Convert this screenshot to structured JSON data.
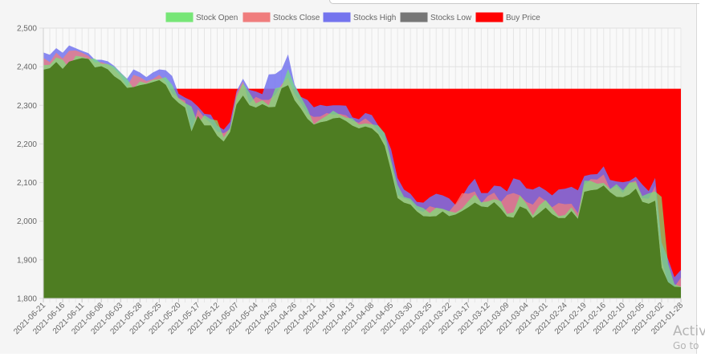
{
  "chart_data": {
    "type": "area",
    "x": [
      "2021-06-21",
      "2021-06-18",
      "2021-06-17",
      "2021-06-16",
      "2021-06-15",
      "2021-06-14",
      "2021-06-11",
      "2021-06-10",
      "2021-06-09",
      "2021-06-08",
      "2021-06-07",
      "2021-06-04",
      "2021-06-03",
      "2021-06-02",
      "2021-06-01",
      "2021-05-28",
      "2021-05-27",
      "2021-05-26",
      "2021-05-25",
      "2021-05-24",
      "2021-05-21",
      "2021-05-20",
      "2021-05-19",
      "2021-05-18",
      "2021-05-17",
      "2021-05-14",
      "2021-05-13",
      "2021-05-12",
      "2021-05-11",
      "2021-05-10",
      "2021-05-07",
      "2021-05-06",
      "2021-05-05",
      "2021-05-04",
      "2021-05-03",
      "2021-04-30",
      "2021-04-29",
      "2021-04-28",
      "2021-04-27",
      "2021-04-26",
      "2021-04-23",
      "2021-04-22",
      "2021-04-21",
      "2021-04-20",
      "2021-04-19",
      "2021-04-16",
      "2021-04-15",
      "2021-04-14",
      "2021-04-13",
      "2021-04-12",
      "2021-04-09",
      "2021-04-08",
      "2021-04-07",
      "2021-04-06",
      "2021-04-05",
      "2021-04-01",
      "2021-03-31",
      "2021-03-30",
      "2021-03-29",
      "2021-03-26",
      "2021-03-25",
      "2021-03-24",
      "2021-03-23",
      "2021-03-22",
      "2021-03-19",
      "2021-03-18",
      "2021-03-17",
      "2021-03-16",
      "2021-03-15",
      "2021-03-12",
      "2021-03-11",
      "2021-03-10",
      "2021-03-09",
      "2021-03-08",
      "2021-03-05",
      "2021-03-04",
      "2021-03-03",
      "2021-03-02",
      "2021-03-01",
      "2021-02-26",
      "2021-02-25",
      "2021-02-24",
      "2021-02-23",
      "2021-02-22",
      "2021-02-19",
      "2021-02-18",
      "2021-02-17",
      "2021-02-16",
      "2021-02-12",
      "2021-02-11",
      "2021-02-10",
      "2021-02-09",
      "2021-02-08",
      "2021-02-05",
      "2021-02-04",
      "2021-02-03",
      "2021-02-02",
      "2021-02-01",
      "2021-01-29",
      "2021-01-28"
    ],
    "x_tick_labels": [
      "2021-06-21",
      "2021-06-16",
      "2021-06-11",
      "2021-06-08",
      "2021-06-03",
      "2021-05-28",
      "2021-05-25",
      "2021-05-20",
      "2021-05-17",
      "2021-05-12",
      "2021-05-07",
      "2021-05-04",
      "2021-04-29",
      "2021-04-26",
      "2021-04-21",
      "2021-04-16",
      "2021-04-13",
      "2021-04-08",
      "2021-04-05",
      "2021-03-30",
      "2021-03-25",
      "2021-03-22",
      "2021-03-17",
      "2021-03-12",
      "2021-03-09",
      "2021-03-04",
      "2021-03-01",
      "2021-02-24",
      "2021-02-19",
      "2021-02-16",
      "2021-02-10",
      "2021-02-05",
      "2021-02-02",
      "2021-01-28"
    ],
    "y_tick_labels": [
      "1,800",
      "1,900",
      "2,000",
      "2,100",
      "2,200",
      "2,300",
      "2,400",
      "2,500"
    ],
    "ylim": [
      1800,
      2500
    ],
    "grid": true,
    "legend_position": "top",
    "series": [
      {
        "name": "Stock Open",
        "color": "#77e677",
        "values": [
          2404,
          2405,
          2424,
          2418,
          2396,
          2428,
          2426,
          2420,
          2421,
          2408,
          2407,
          2400,
          2384,
          2368,
          2344,
          2362,
          2357,
          2366,
          2368,
          2373,
          2353,
          2318,
          2306,
          2297,
          2252,
          2275,
          2264,
          2261,
          2217,
          2243,
          2321,
          2357,
          2333,
          2305,
          2313,
          2300,
          2344,
          2348,
          2394,
          2350,
          2322,
          2291,
          2251,
          2263,
          2273,
          2286,
          2276,
          2268,
          2266,
          2250,
          2253,
          2251,
          2248,
          2228,
          2158,
          2094,
          2063,
          2058,
          2040,
          2034,
          2021,
          2035,
          2032,
          2026,
          2022,
          2032,
          2052,
          2069,
          2049,
          2051,
          2057,
          2053,
          2019,
          2023,
          2067,
          2045,
          2015,
          2041,
          2055,
          2034,
          2013,
          2016,
          2036,
          2011,
          2105,
          2104,
          2097,
          2099,
          2083,
          2096,
          2080,
          2100,
          2101,
          2065,
          2072,
          2077,
          2063,
          1890,
          1837,
          1830
        ]
      },
      {
        "name": "Stocks Close",
        "color": "#f07d7d",
        "values": [
          2423,
          2412,
          2436,
          2421,
          2441,
          2442,
          2436,
          2428,
          2411,
          2412,
          2406,
          2394,
          2376,
          2349,
          2379,
          2373,
          2363,
          2368,
          2379,
          2361,
          2331,
          2319,
          2312,
          2235,
          2290,
          2268,
          2254,
          2232,
          2228,
          2238,
          2331,
          2362,
          2305,
          2322,
          2314,
          2314,
          2327,
          2354,
          2372,
          2330,
          2306,
          2278,
          2270,
          2271,
          2280,
          2276,
          2278,
          2274,
          2260,
          2255,
          2266,
          2253,
          2231,
          2206,
          2151,
          2068,
          2059,
          2053,
          2030,
          2024,
          2039,
          2034,
          2031,
          2025,
          2045,
          2073,
          2071,
          2077,
          2046,
          2065,
          2074,
          2049,
          2068,
          2073,
          2067,
          2050,
          2043,
          2064,
          2053,
          2036,
          2047,
          2044,
          2045,
          2021,
          2094,
          2109,
          2108,
          2121,
          2083,
          2090,
          2073,
          2099,
          2105,
          2060,
          2058,
          2091,
          1902,
          1840,
          1830,
          1854
        ]
      },
      {
        "name": "Stocks High",
        "color": "#7474ee",
        "values": [
          2437,
          2431,
          2448,
          2436,
          2455,
          2448,
          2441,
          2435,
          2418,
          2418,
          2414,
          2402,
          2385,
          2369,
          2393,
          2385,
          2373,
          2385,
          2393,
          2391,
          2376,
          2330,
          2320,
          2312,
          2297,
          2278,
          2276,
          2247,
          2237,
          2257,
          2337,
          2369,
          2340,
          2336,
          2329,
          2380,
          2381,
          2393,
          2432,
          2354,
          2322,
          2314,
          2295,
          2301,
          2298,
          2300,
          2300,
          2299,
          2269,
          2264,
          2280,
          2275,
          2248,
          2228,
          2186,
          2112,
          2082,
          2071,
          2050,
          2048,
          2062,
          2071,
          2067,
          2059,
          2042,
          2063,
          2091,
          2110,
          2073,
          2073,
          2092,
          2090,
          2077,
          2111,
          2106,
          2085,
          2082,
          2090,
          2080,
          2067,
          2082,
          2084,
          2089,
          2080,
          2117,
          2121,
          2122,
          2142,
          2107,
          2103,
          2101,
          2104,
          2115,
          2095,
          2078,
          2112,
          1945,
          1902,
          1855,
          1874
        ]
      },
      {
        "name": "Stocks Low",
        "color": "#777777",
        "values": [
          2392,
          2396,
          2412,
          2394,
          2413,
          2418,
          2422,
          2420,
          2398,
          2401,
          2393,
          2375,
          2364,
          2345,
          2347,
          2352,
          2355,
          2360,
          2365,
          2353,
          2322,
          2306,
          2294,
          2232,
          2272,
          2248,
          2248,
          2221,
          2206,
          2231,
          2302,
          2325,
          2300,
          2294,
          2303,
          2295,
          2296,
          2344,
          2352,
          2313,
          2291,
          2265,
          2250,
          2256,
          2259,
          2266,
          2268,
          2259,
          2247,
          2240,
          2245,
          2240,
          2225,
          2195,
          2130,
          2060,
          2048,
          2043,
          2025,
          2013,
          2012,
          2013,
          2025,
          2013,
          2017,
          2026,
          2036,
          2048,
          2038,
          2036,
          2049,
          2033,
          2012,
          2009,
          2038,
          2031,
          2008,
          2021,
          2035,
          2018,
          2008,
          2008,
          2026,
          2006,
          2076,
          2080,
          2082,
          2092,
          2075,
          2063,
          2062,
          2069,
          2084,
          2050,
          2045,
          2053,
          1880,
          1842,
          1830,
          1829
        ]
      },
      {
        "name": "Buy Price",
        "color": "#ff0000",
        "values": [
          2343,
          2343,
          2343,
          2343,
          2343,
          2343,
          2343,
          2343,
          2343,
          2343,
          2343,
          2343,
          2343,
          2343,
          2343,
          2343,
          2343,
          2343,
          2343,
          2343,
          2343,
          2343,
          2343,
          2343,
          2343,
          2343,
          2343,
          2343,
          2343,
          2343,
          2343,
          2343,
          2343,
          2343,
          2343,
          2343,
          2343,
          2343,
          2343,
          2343,
          2343,
          2343,
          2343,
          2343,
          2343,
          2343,
          2343,
          2343,
          2343,
          2343,
          2343,
          2343,
          2343,
          2343,
          2343,
          2343,
          2343,
          2343,
          2343,
          2343,
          2343,
          2343,
          2343,
          2343,
          2343,
          2343,
          2343,
          2343,
          2343,
          2343,
          2343,
          2343,
          2343,
          2343,
          2343,
          2343,
          2343,
          2343,
          2343,
          2343,
          2343,
          2343,
          2343,
          2343,
          2343,
          2343,
          2343,
          2343,
          2343,
          2343,
          2343,
          2343,
          2343,
          2343,
          2343,
          2343,
          2343,
          2343,
          2343,
          2343
        ]
      }
    ]
  },
  "watermark": {
    "line1": "Activ",
    "line2": "Go to"
  }
}
